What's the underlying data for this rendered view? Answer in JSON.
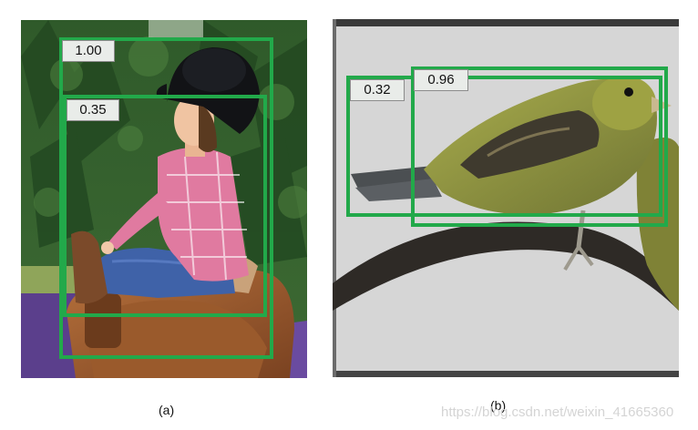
{
  "panels": [
    {
      "caption": "(a)",
      "subject": "girl-riding-horse",
      "boxes": [
        {
          "score": "1.00"
        },
        {
          "score": "0.35"
        }
      ]
    },
    {
      "caption": "(b)",
      "subject": "bird-on-branch",
      "boxes": [
        {
          "score": "0.32"
        },
        {
          "score": "0.96"
        }
      ]
    }
  ],
  "watermark": "https://blog.csdn.net/weixin_41665360",
  "colors": {
    "box_stroke": "#22a94a",
    "label_bg": "#e9ece9"
  }
}
